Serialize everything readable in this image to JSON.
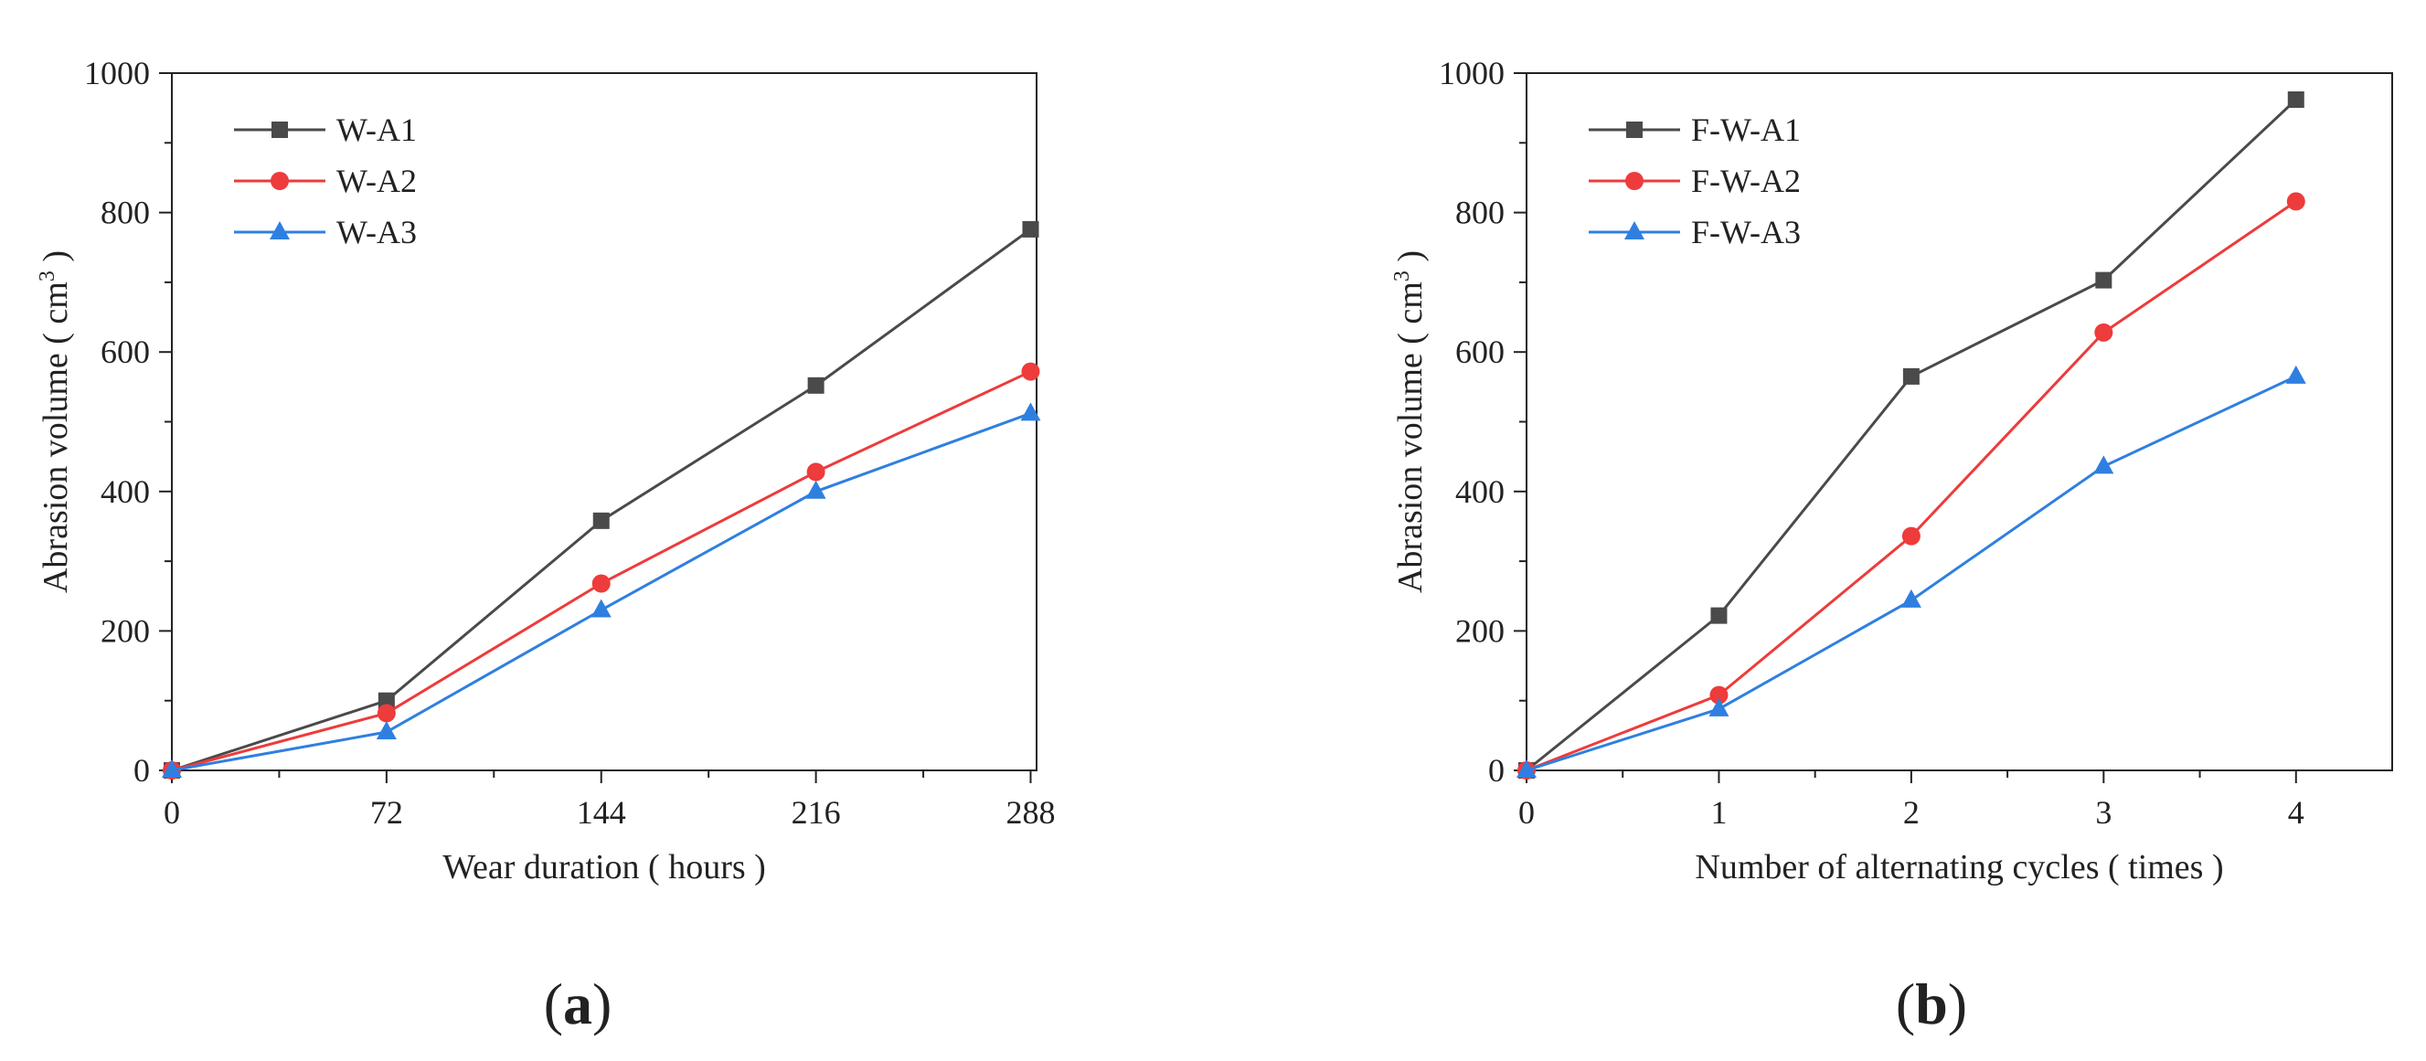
{
  "chart_data": [
    {
      "type": "line",
      "panel_label": {
        "open": "(",
        "letter": "a",
        "close": ")"
      },
      "xlabel": "Wear duration ( hours )",
      "ylabel": {
        "prefix": "Abrasion volume ( cm",
        "sup": "3",
        "suffix": " )"
      },
      "x": [
        0,
        72,
        144,
        216,
        288
      ],
      "xlim": [
        0,
        290
      ],
      "ylim": [
        0,
        1000
      ],
      "xticks": [
        0,
        72,
        144,
        216,
        288
      ],
      "xtick_labels": [
        "0",
        "72",
        "144",
        "216",
        "288"
      ],
      "yticks": [
        0,
        200,
        400,
        600,
        800,
        1000
      ],
      "ytick_labels": [
        "0",
        "200",
        "400",
        "600",
        "800",
        "1000"
      ],
      "legend_position": "top-left",
      "series": [
        {
          "name": "W-A1",
          "color": "#4a4a4a",
          "marker": "square",
          "values": [
            0,
            100,
            358,
            552,
            776
          ]
        },
        {
          "name": "W-A2",
          "color": "#ee3b3b",
          "marker": "circle",
          "values": [
            0,
            82,
            268,
            428,
            572
          ]
        },
        {
          "name": "W-A3",
          "color": "#2f7fe0",
          "marker": "triangle",
          "values": [
            0,
            55,
            230,
            400,
            512
          ]
        }
      ]
    },
    {
      "type": "line",
      "panel_label": {
        "open": "(",
        "letter": "b",
        "close": ")"
      },
      "xlabel": "Number of alternating cycles ( times )",
      "ylabel": {
        "prefix": "Abrasion volume ( cm",
        "sup": "3",
        "suffix": " )"
      },
      "x": [
        0,
        1,
        2,
        3,
        4
      ],
      "xlim": [
        0,
        4.5
      ],
      "ylim": [
        0,
        1000
      ],
      "xticks": [
        0,
        1,
        2,
        3,
        4
      ],
      "xtick_labels": [
        "0",
        "1",
        "2",
        "3",
        "4"
      ],
      "yticks": [
        0,
        200,
        400,
        600,
        800,
        1000
      ],
      "ytick_labels": [
        "0",
        "200",
        "400",
        "600",
        "800",
        "1000"
      ],
      "legend_position": "top-left",
      "series": [
        {
          "name": "F-W-A1",
          "color": "#4a4a4a",
          "marker": "square",
          "values": [
            0,
            222,
            565,
            703,
            962
          ]
        },
        {
          "name": "F-W-A2",
          "color": "#ee3b3b",
          "marker": "circle",
          "values": [
            0,
            108,
            336,
            628,
            816
          ]
        },
        {
          "name": "F-W-A3",
          "color": "#2f7fe0",
          "marker": "triangle",
          "values": [
            0,
            88,
            244,
            436,
            565
          ]
        }
      ]
    }
  ]
}
